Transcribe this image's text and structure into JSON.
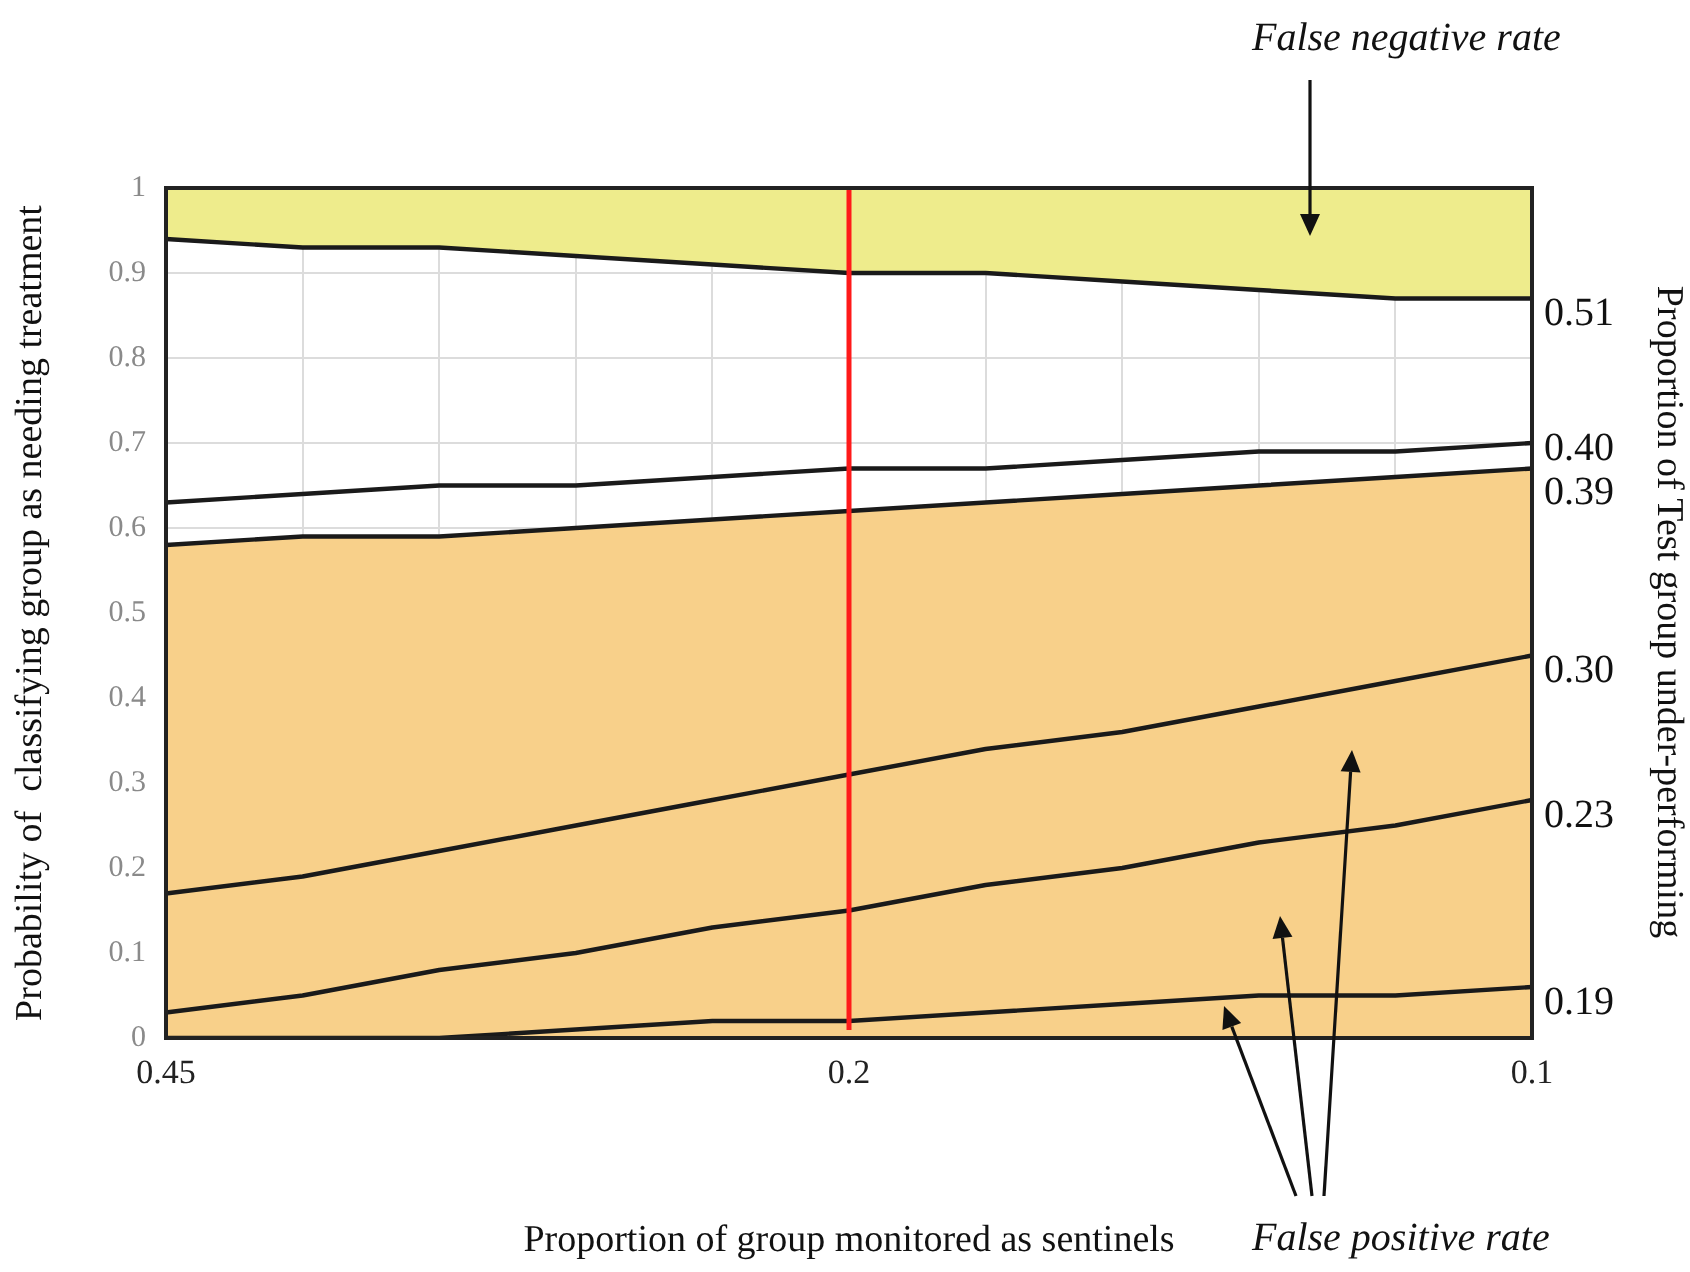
{
  "chart_data": {
    "type": "line",
    "xlabel": "Proportion of group monitored as sentinels",
    "ylabel": "Probability of  classifying group as needing treatment",
    "y2label": "Proportion of Test group under-performing",
    "categories": [
      "0.45",
      null,
      null,
      null,
      null,
      "0.2",
      null,
      null,
      null,
      null,
      "0.1"
    ],
    "ylim": [
      0,
      1
    ],
    "yticks": [
      0,
      0.1,
      0.2,
      0.3,
      0.4,
      0.5,
      0.6,
      0.7,
      0.8,
      0.9,
      1
    ],
    "grid": true,
    "legend": false,
    "marker": "none",
    "line_style": "solid",
    "series": [
      {
        "name": "0.51",
        "color": "#1a1a1a",
        "values": [
          0.94,
          0.93,
          0.93,
          0.92,
          0.91,
          0.9,
          0.9,
          0.89,
          0.88,
          0.87,
          0.87
        ],
        "lower": [
          0.94,
          0.93,
          0.93,
          0.92,
          0.91,
          0.9,
          0.9,
          0.89,
          0.88,
          0.87,
          0.87
        ],
        "upper": [
          1,
          1,
          1,
          1,
          1,
          1,
          1,
          1,
          1,
          1,
          1
        ]
      },
      {
        "name": "0.40",
        "color": "#1a1a1a",
        "values": [
          0.63,
          0.64,
          0.65,
          0.65,
          0.66,
          0.67,
          0.67,
          0.68,
          0.69,
          0.69,
          0.7
        ]
      },
      {
        "name": "0.39",
        "type": "area",
        "color": "#1a1a1a",
        "values": [
          0.58,
          0.59,
          0.59,
          0.6,
          0.61,
          0.62,
          0.63,
          0.64,
          0.65,
          0.66,
          0.67
        ]
      },
      {
        "name": "0.30",
        "color": "#1a1a1a",
        "values": [
          0.17,
          0.19,
          0.22,
          0.25,
          0.28,
          0.31,
          0.34,
          0.36,
          0.39,
          0.42,
          0.45
        ]
      },
      {
        "name": "0.23",
        "color": "#1a1a1a",
        "values": [
          0.03,
          0.05,
          0.08,
          0.1,
          0.13,
          0.15,
          0.18,
          0.2,
          0.23,
          0.25,
          0.28
        ]
      },
      {
        "name": "0.19",
        "color": "#1a1a1a",
        "values": [
          0,
          0,
          0,
          0.01,
          0.02,
          0.02,
          0.03,
          0.04,
          0.05,
          0.05,
          0.06
        ]
      }
    ],
    "ref_lines": [
      {
        "axis": "x",
        "value": "0.2",
        "color": "#ff1a1a"
      }
    ],
    "annotations": [
      "False negative rate",
      "False positive rate"
    ]
  }
}
